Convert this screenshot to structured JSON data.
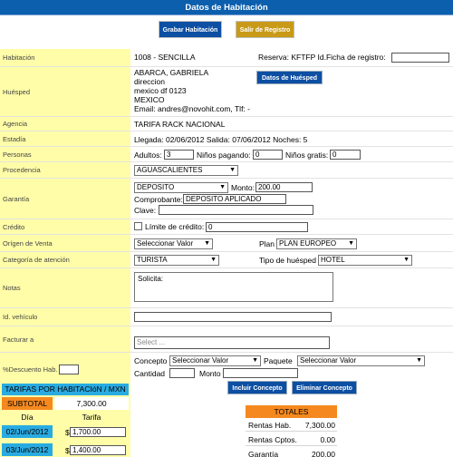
{
  "title": "Datos de Habitación",
  "buttons": {
    "save": "Grabar Habitación",
    "exit": "Salir de Registro",
    "guest_data": "Datos de Huésped",
    "add_concept": "Incluir Concepto",
    "remove_concept": "Eliminar Concepto"
  },
  "labels": {
    "room": "Habitación",
    "guest": "Huésped",
    "agency": "Agencia",
    "stay": "Estadía",
    "persons": "Personas",
    "origin": "Procedencia",
    "guarantee": "Garantía",
    "credit": "Crédito",
    "sale_origin": "Orígen de Venta",
    "category": "Categoría de atención",
    "notes": "Notas",
    "vehicle": "Id. vehículo",
    "bill_to": "Facturar a",
    "discount": "%Descuento Hab."
  },
  "room": {
    "value": "1008 - SENCILLA",
    "reservation": "Reserva:  KFTFP  Id.Ficha de registro:",
    "record_id": ""
  },
  "guest": {
    "name": "ABARCA, GABRIELA",
    "address": "direccion",
    "city": "mexico df 0123",
    "country": "MEXICO",
    "email": "Email: andres@novohit.com, Tlf: -"
  },
  "agency": "TARIFA RACK NACIONAL",
  "stay": "Llegada:  02/06/2012  Salida:  07/06/2012  Noches:  5",
  "persons": {
    "adults_label": "Adultos:",
    "adults": "3",
    "paying_label": "Niños pagando:",
    "paying": "0",
    "free_label": "Niños gratis:",
    "free": "0"
  },
  "origin": "AGUASCALIENTES",
  "guarantee": {
    "type": "DEPOSITO",
    "amount_label": "Monto:",
    "amount": "200.00",
    "voucher_label": "Comprobante:",
    "voucher": "DEPOSITO APLICADO",
    "key_label": "Clave:",
    "key": ""
  },
  "credit": {
    "limit_label": "Límite de crédito:",
    "limit": "0"
  },
  "sale_origin": {
    "value": "Seleccionar Valor",
    "plan_label": "Plan",
    "plan": "PLAN EUROPEO"
  },
  "category": {
    "value": "TURISTA",
    "guest_type_label": "Tipo de huésped",
    "guest_type": "HOTEL"
  },
  "notes": "Solicita:",
  "vehicle": "",
  "bill_to": {
    "placeholder": "Select ..."
  },
  "discount": "",
  "concept": {
    "label": "Concepto",
    "value": "Seleccionar Valor",
    "package_label": "Paquete",
    "package": "Seleccionar Valor",
    "qty_label": "Cantidad",
    "qty": "",
    "amount_label": "Monto",
    "amount": ""
  },
  "rates": {
    "header": "TARIFAS POR HABITACIóN / MXN",
    "subtotal_label": "SUBTOTAL",
    "subtotal": "7,300.00",
    "col_day": "Día",
    "col_rate": "Tarifa",
    "rows": [
      {
        "day": "02/Jun/2012",
        "currency": "$",
        "rate": "1,700.00"
      },
      {
        "day": "03/Jun/2012",
        "currency": "$",
        "rate": "1,400.00"
      }
    ]
  },
  "totals": {
    "header": "TOTALES",
    "rows": [
      {
        "label": "Rentas Hab.",
        "value": "7,300.00"
      },
      {
        "label": "Rentas Cptos.",
        "value": "0.00"
      },
      {
        "label": "Garantía",
        "value": "200.00"
      }
    ]
  },
  "colors": {
    "title_bg": "#0b5fad",
    "label_bg": "#fffda8",
    "button_blue": "#0d4fa3",
    "button_gold": "#c89a17",
    "rates_header": "#29abe2",
    "subtotal_bg": "#f5891f",
    "totals_header": "#f5891f"
  }
}
